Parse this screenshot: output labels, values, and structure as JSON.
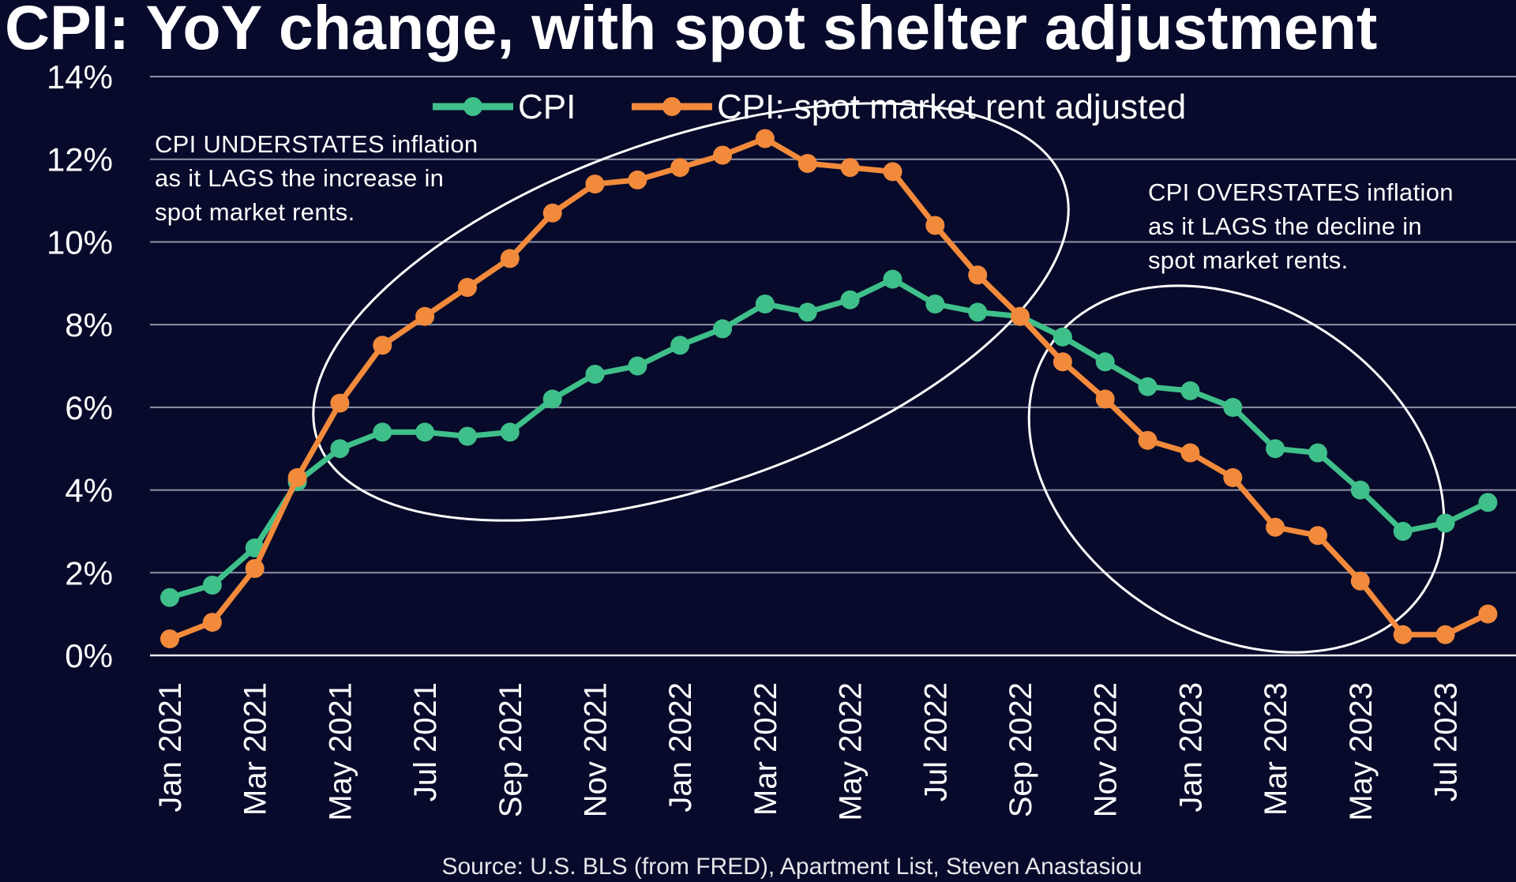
{
  "chart_data": {
    "type": "line",
    "title": "CPI: YoY change, with spot shelter adjustment",
    "source": "Source: U.S. BLS (from FRED), Apartment List, Steven Anastasiou",
    "ylim": [
      0,
      14
    ],
    "yticks": [
      0,
      2,
      4,
      6,
      8,
      10,
      12,
      14
    ],
    "ytick_labels": [
      "0%",
      "2%",
      "4%",
      "6%",
      "8%",
      "10%",
      "12%",
      "14%"
    ],
    "categories": [
      "Jan 2021",
      "Feb 2021",
      "Mar 2021",
      "Apr 2021",
      "May 2021",
      "Jun 2021",
      "Jul 2021",
      "Aug 2021",
      "Sep 2021",
      "Oct 2021",
      "Nov 2021",
      "Dec 2021",
      "Jan 2022",
      "Feb 2022",
      "Mar 2022",
      "Apr 2022",
      "May 2022",
      "Jun 2022",
      "Jul 2022",
      "Aug 2022",
      "Sep 2022",
      "Oct 2022",
      "Nov 2022",
      "Dec 2022",
      "Jan 2023",
      "Feb 2023",
      "Mar 2023",
      "Apr 2023",
      "May 2023",
      "Jun 2023",
      "Jul 2023",
      "Aug 2023"
    ],
    "xtick_labels": [
      "Jan 2021",
      "Mar 2021",
      "May 2021",
      "Jul 2021",
      "Sep 2021",
      "Nov 2021",
      "Jan 2022",
      "Mar 2022",
      "May 2022",
      "Jul 2022",
      "Sep 2022",
      "Nov 2022",
      "Jan 2023",
      "Mar 2023",
      "May 2023",
      "Jul 2023"
    ],
    "series": [
      {
        "name": "CPI",
        "color": "#3fbf8a",
        "values": [
          1.4,
          1.7,
          2.6,
          4.2,
          5.0,
          5.4,
          5.4,
          5.3,
          5.4,
          6.2,
          6.8,
          7.0,
          7.5,
          7.9,
          8.5,
          8.3,
          8.6,
          9.1,
          8.5,
          8.3,
          8.2,
          7.7,
          7.1,
          6.5,
          6.4,
          6.0,
          5.0,
          4.9,
          4.0,
          3.0,
          3.2,
          3.7
        ]
      },
      {
        "name": "CPI: spot market rent adjusted",
        "color": "#f28a3c",
        "values": [
          0.4,
          0.8,
          2.1,
          4.3,
          6.1,
          7.5,
          8.2,
          8.9,
          9.6,
          10.7,
          11.4,
          11.5,
          11.8,
          12.1,
          12.5,
          11.9,
          11.8,
          11.7,
          10.4,
          9.2,
          8.2,
          7.1,
          6.2,
          5.2,
          4.9,
          4.3,
          3.1,
          2.9,
          1.8,
          0.5,
          0.5,
          1.0
        ]
      }
    ],
    "annotations": [
      {
        "lines": [
          "CPI UNDERSTATES inflation",
          "as it LAGS the increase in",
          "spot market rents."
        ]
      },
      {
        "lines": [
          "CPI OVERSTATES inflation",
          "as it LAGS the decline in",
          "spot market rents."
        ]
      }
    ]
  }
}
